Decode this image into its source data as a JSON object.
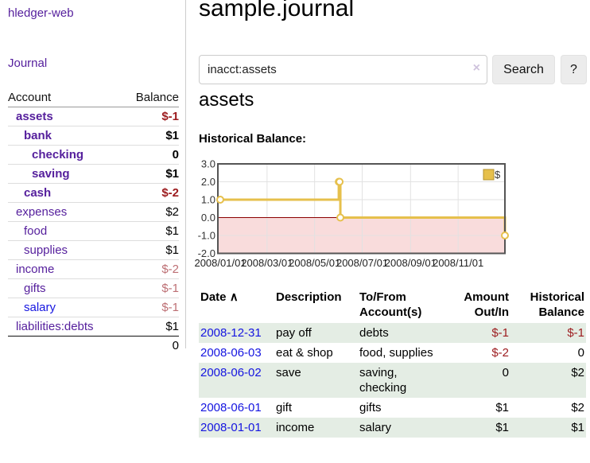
{
  "app": {
    "title": "hledger-web"
  },
  "colors": {
    "link_purple": "#56209d",
    "link_blue": "#1515e0",
    "negative_strong": "#9c1b1e",
    "negative_soft": "#bd6f74",
    "row_green": "#e4ede4",
    "chart_gold": "#e6c04c"
  },
  "sidebar": {
    "nav_journal": "Journal",
    "table": {
      "account_header": "Account",
      "balance_header": "Balance",
      "accounts": [
        {
          "name": "assets",
          "level": 1,
          "bold": true,
          "link": "purple",
          "balance": "$-1",
          "balance_style": "neg-strong"
        },
        {
          "name": "bank",
          "level": 2,
          "bold": true,
          "link": "purple",
          "balance": "$1",
          "balance_style": "pos"
        },
        {
          "name": "checking",
          "level": 3,
          "bold": true,
          "link": "purple",
          "balance": "0",
          "balance_style": "pos"
        },
        {
          "name": "saving",
          "level": 3,
          "bold": true,
          "link": "purple",
          "balance": "$1",
          "balance_style": "pos"
        },
        {
          "name": "cash",
          "level": 2,
          "bold": true,
          "link": "purple",
          "balance": "$-2",
          "balance_style": "neg-strong"
        },
        {
          "name": "expenses",
          "level": 1,
          "bold": false,
          "link": "purple",
          "balance": "$2",
          "balance_style": "pos"
        },
        {
          "name": "food",
          "level": 2,
          "bold": false,
          "link": "purple",
          "balance": "$1",
          "balance_style": "pos"
        },
        {
          "name": "supplies",
          "level": 2,
          "bold": false,
          "link": "purple",
          "balance": "$1",
          "balance_style": "pos"
        },
        {
          "name": "income",
          "level": 1,
          "bold": false,
          "link": "purple",
          "balance": "$-2",
          "balance_style": "neg-soft"
        },
        {
          "name": "gifts",
          "level": 2,
          "bold": false,
          "link": "purple",
          "balance": "$-1",
          "balance_style": "neg-soft"
        },
        {
          "name": "salary",
          "level": 2,
          "bold": false,
          "link": "blue",
          "balance": "$-1",
          "balance_style": "neg-soft"
        },
        {
          "name": "liabilities:debts",
          "level": 1,
          "bold": false,
          "link": "purple",
          "balance": "$1",
          "balance_style": "pos"
        }
      ],
      "total": "0"
    }
  },
  "header": {
    "title": "sample.journal"
  },
  "search": {
    "value": "inacct:assets",
    "clear_icon": "×",
    "button_label": "Search",
    "help_label": "?"
  },
  "account_page": {
    "title": "assets",
    "chart_label": "Historical Balance:"
  },
  "chart_data": {
    "type": "line",
    "title": "Historical Balance:",
    "legend": [
      {
        "label": "$",
        "color": "#e6c04c"
      }
    ],
    "legend_position": "top-right",
    "grid": true,
    "step": true,
    "ylim": [
      -2,
      3
    ],
    "y_ticks": [
      "3.0",
      "2.0",
      "1.0",
      "0.0",
      "-1.0",
      "-2.0"
    ],
    "x_ticks": [
      "2008/01/01",
      "2008/03/01",
      "2008/05/01",
      "2008/07/01",
      "2008/09/01",
      "2008/11/01"
    ],
    "x_range": [
      "2008-01-01",
      "2008-12-31"
    ],
    "series": [
      {
        "name": "$",
        "color": "#e6c04c",
        "marker_fill": "#ffffff",
        "points": [
          [
            "2008-01-01",
            1
          ],
          [
            "2008-06-01",
            2
          ],
          [
            "2008-06-02",
            2
          ],
          [
            "2008-06-03",
            0
          ],
          [
            "2008-12-31",
            -1
          ]
        ]
      }
    ],
    "negative_region_color": "#f9dcdc",
    "zero_line_color": "#8b0000",
    "grid_color": "#e2e2e2",
    "border_color": "#555555"
  },
  "register": {
    "columns": [
      [
        "Date"
      ],
      [
        "Description"
      ],
      [
        "To/From",
        "Account(s)"
      ],
      [
        "Amount",
        "Out/In"
      ],
      [
        "Historical",
        "Balance"
      ]
    ],
    "sort_indicator": "∧",
    "rows": [
      {
        "date": "2008-12-31",
        "description": "pay off",
        "accounts": [
          "debts"
        ],
        "amount": "$-1",
        "amount_neg": true,
        "balance": "$-1",
        "balance_neg": true
      },
      {
        "date": "2008-06-03",
        "description": "eat & shop",
        "accounts": [
          "food, supplies"
        ],
        "amount": "$-2",
        "amount_neg": true,
        "balance": "0",
        "balance_neg": false
      },
      {
        "date": "2008-06-02",
        "description": "save",
        "accounts": [
          "saving,",
          "checking"
        ],
        "amount": "0",
        "amount_neg": false,
        "balance": "$2",
        "balance_neg": false
      },
      {
        "date": "2008-06-01",
        "description": "gift",
        "accounts": [
          "gifts"
        ],
        "amount": "$1",
        "amount_neg": false,
        "balance": "$2",
        "balance_neg": false
      },
      {
        "date": "2008-01-01",
        "description": "income",
        "accounts": [
          "salary"
        ],
        "amount": "$1",
        "amount_neg": false,
        "balance": "$1",
        "balance_neg": false
      }
    ]
  }
}
